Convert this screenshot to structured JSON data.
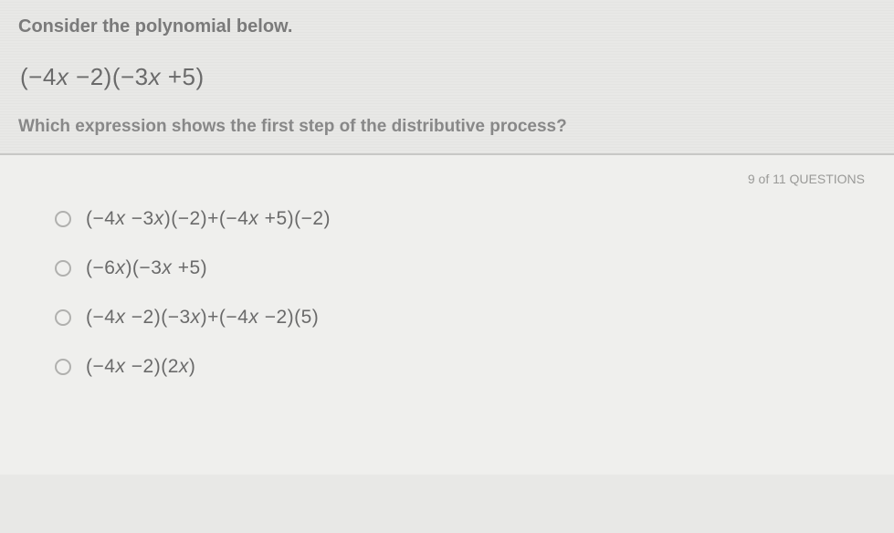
{
  "question": {
    "instruction": "Consider the polynomial below.",
    "polynomial_html": "(−4<span class=\"var\">x</span> −2)(−3<span class=\"var\">x</span> +5)",
    "prompt": "Which expression shows the first step of the distributive process?"
  },
  "progress": {
    "current": "9",
    "label": "of 11 QUESTIONS"
  },
  "options": [
    {
      "html": "(−4<span class=\"var\">x</span> −3<span class=\"var\">x</span>)(−2)+(−4<span class=\"var\">x</span> +5)(−2)"
    },
    {
      "html": "(−6<span class=\"var\">x</span>)(−3<span class=\"var\">x</span> +5)"
    },
    {
      "html": "(−4<span class=\"var\">x</span> −2)(−3<span class=\"var\">x</span>)+(−4<span class=\"var\">x</span> −2)(5)"
    },
    {
      "html": "(−4<span class=\"var\">x</span> −2)(2<span class=\"var\">x</span>)"
    }
  ],
  "colors": {
    "bg_top": "#e8e8e6",
    "bg_bottom": "#efefed",
    "divider": "#c8c8c6",
    "instruction_text": "#7a7a7a",
    "polynomial_text": "#6a6a6a",
    "question_text": "#888888",
    "progress_text": "#9a9a98",
    "radio_border": "#b0b0ae"
  }
}
